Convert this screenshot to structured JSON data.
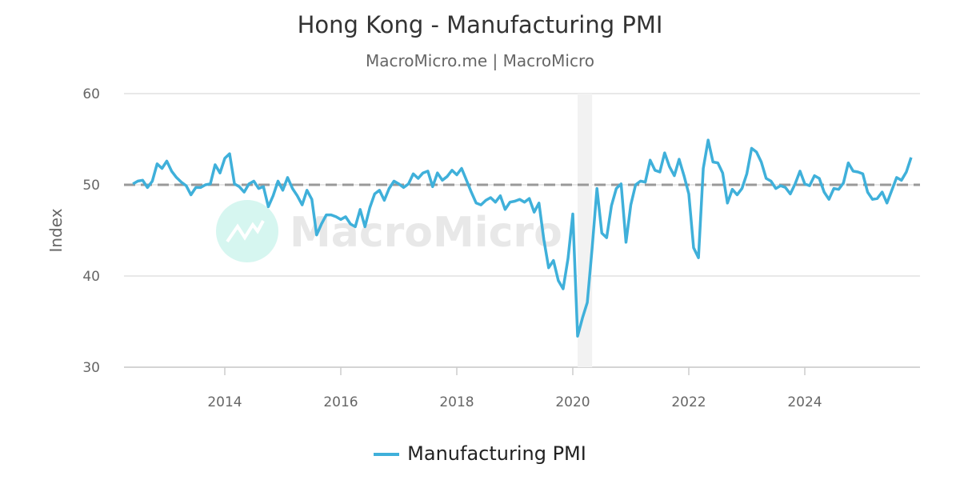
{
  "chart_data": {
    "type": "line",
    "title": "Hong Kong - Manufacturing PMI",
    "subtitle": "MacroMicro.me | MacroMicro",
    "ylabel": "Index",
    "xlabel": "",
    "ylim": [
      30,
      60
    ],
    "yticks": [
      "30",
      "40",
      "50",
      "60"
    ],
    "xticks": [
      "2014",
      "2016",
      "2018",
      "2020",
      "2022",
      "2024"
    ],
    "grid": "horizontal",
    "legend": "bottom",
    "reference_line": {
      "value": 50,
      "style": "dashed",
      "color": "#999999"
    },
    "shaded_period": {
      "start": "2020-02",
      "end": "2020-04",
      "color": "#f2f2f2"
    },
    "watermark": "MacroMicro",
    "series": [
      {
        "name": "Manufacturing PMI",
        "color": "#3fb0da",
        "start": "2012-06",
        "frequency": "monthly",
        "values": [
          50.1,
          50.4,
          50.5,
          49.7,
          50.4,
          52.3,
          51.8,
          52.6,
          51.5,
          50.8,
          50.3,
          49.9,
          48.9,
          49.7,
          49.7,
          50.0,
          50.1,
          52.2,
          51.3,
          52.9,
          53.4,
          50.1,
          49.8,
          49.2,
          50.1,
          50.4,
          49.6,
          49.8,
          47.6,
          48.8,
          50.4,
          49.4,
          50.8,
          49.6,
          48.8,
          47.8,
          49.4,
          48.4,
          44.5,
          45.7,
          46.7,
          46.7,
          46.5,
          46.2,
          46.5,
          45.7,
          45.4,
          47.3,
          45.4,
          47.5,
          49.0,
          49.4,
          48.3,
          49.6,
          50.4,
          50.1,
          49.7,
          50.1,
          51.2,
          50.7,
          51.3,
          51.5,
          49.8,
          51.3,
          50.5,
          50.9,
          51.6,
          51.1,
          51.8,
          50.5,
          49.2,
          48.0,
          47.8,
          48.3,
          48.6,
          48.1,
          48.8,
          47.3,
          48.1,
          48.2,
          48.4,
          48.1,
          48.5,
          47.0,
          48.0,
          44.0,
          40.9,
          41.7,
          39.5,
          38.6,
          41.9,
          46.8,
          33.4,
          35.4,
          37.1,
          43.1,
          49.6,
          44.7,
          44.2,
          47.7,
          49.6,
          50.1,
          43.7,
          47.8,
          50.0,
          50.4,
          50.3,
          52.7,
          51.6,
          51.4,
          53.5,
          52.0,
          51.0,
          52.8,
          51.0,
          49.0,
          43.1,
          42.0,
          51.8,
          54.9,
          52.5,
          52.4,
          51.3,
          48.0,
          49.5,
          48.9,
          49.6,
          51.2,
          54.0,
          53.6,
          52.5,
          50.7,
          50.4,
          49.6,
          49.9,
          49.7,
          49.0,
          50.1,
          51.5,
          50.1,
          49.9,
          51.0,
          50.7,
          49.2,
          48.4,
          49.6,
          49.5,
          50.2,
          52.4,
          51.5,
          51.4,
          51.2,
          49.2,
          48.4,
          48.5,
          49.2,
          48.0,
          49.4,
          50.8,
          50.5,
          51.4,
          53.0
        ]
      }
    ]
  }
}
